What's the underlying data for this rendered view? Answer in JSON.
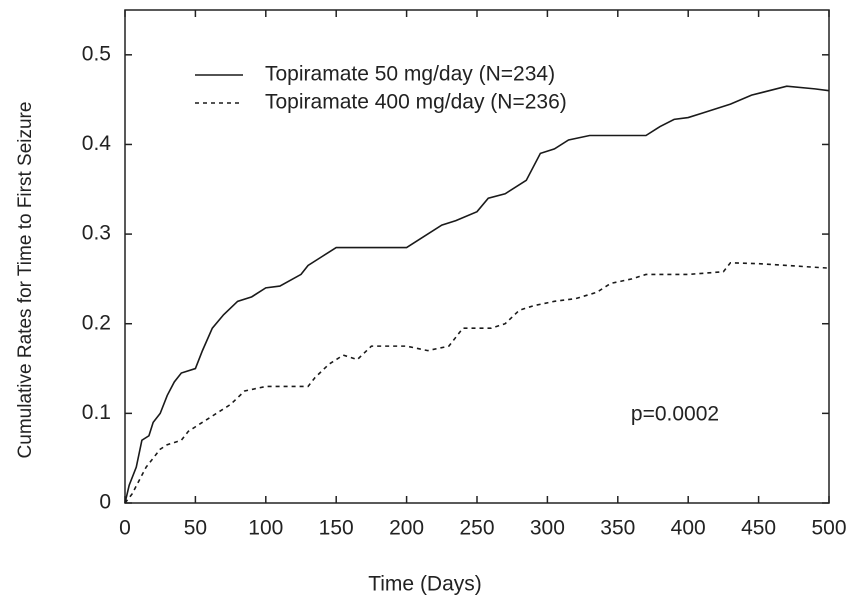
{
  "chart_data": {
    "type": "line",
    "xlabel": "Time (Days)",
    "ylabel": "Cumulative Rates for Time to First Seizure",
    "annotation": "p=0.0002",
    "xlim": [
      0,
      500
    ],
    "xticks": [
      0,
      50,
      100,
      150,
      200,
      250,
      300,
      350,
      400,
      450,
      500
    ],
    "ylim": [
      0,
      0.55
    ],
    "yticks": [
      0,
      0.1,
      0.2,
      0.3,
      0.4,
      0.5
    ],
    "legend": "upper left",
    "series": [
      {
        "name": "Topiramate 50 mg/day (N=234)",
        "color": "#1a1a1a",
        "linestyle": "solid",
        "x": [
          0,
          3,
          8,
          12,
          17,
          20,
          25,
          30,
          35,
          40,
          50,
          55,
          62,
          70,
          80,
          90,
          100,
          110,
          125,
          130,
          140,
          150,
          200,
          210,
          225,
          235,
          250,
          258,
          270,
          285,
          295,
          305,
          315,
          330,
          370,
          380,
          390,
          400,
          410,
          430,
          445,
          470,
          490,
          500
        ],
        "values": [
          0,
          0.02,
          0.04,
          0.07,
          0.075,
          0.09,
          0.1,
          0.12,
          0.135,
          0.145,
          0.15,
          0.17,
          0.195,
          0.21,
          0.225,
          0.23,
          0.24,
          0.242,
          0.255,
          0.265,
          0.275,
          0.285,
          0.285,
          0.295,
          0.31,
          0.315,
          0.325,
          0.34,
          0.345,
          0.36,
          0.39,
          0.395,
          0.405,
          0.41,
          0.41,
          0.42,
          0.428,
          0.43,
          0.435,
          0.445,
          0.455,
          0.465,
          0.462,
          0.46
        ]
      },
      {
        "name": "Topiramate 400 mg/day (N=236)",
        "color": "#1a1a1a",
        "linestyle": "dashed",
        "x": [
          0,
          5,
          10,
          15,
          20,
          25,
          30,
          40,
          45,
          55,
          65,
          75,
          85,
          100,
          130,
          135,
          145,
          155,
          165,
          175,
          200,
          215,
          230,
          240,
          260,
          270,
          280,
          290,
          305,
          320,
          335,
          345,
          360,
          370,
          400,
          425,
          430,
          450,
          470,
          500
        ],
        "values": [
          0,
          0.01,
          0.025,
          0.04,
          0.05,
          0.06,
          0.065,
          0.07,
          0.08,
          0.09,
          0.1,
          0.11,
          0.125,
          0.13,
          0.13,
          0.14,
          0.155,
          0.165,
          0.16,
          0.175,
          0.175,
          0.17,
          0.175,
          0.195,
          0.195,
          0.2,
          0.215,
          0.22,
          0.225,
          0.228,
          0.235,
          0.245,
          0.25,
          0.255,
          0.255,
          0.258,
          0.268,
          0.267,
          0.265,
          0.262
        ]
      }
    ]
  }
}
